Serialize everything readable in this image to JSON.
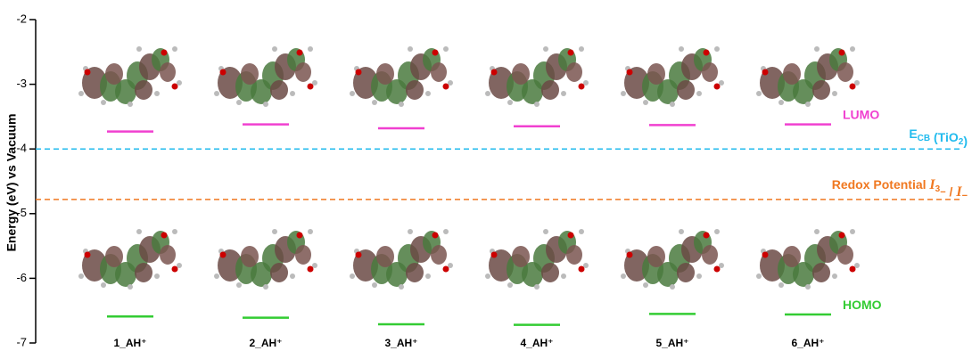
{
  "chart_data": {
    "type": "energy_levels",
    "ylabel": "Energy (eV) vs Vacuum",
    "ylim": [
      -7,
      -2
    ],
    "yticks": [
      -2,
      -3,
      -4,
      -5,
      -6,
      -7
    ],
    "categories": [
      "1_AH⁺",
      "2_AH⁺",
      "3_AH⁺",
      "4_AH⁺",
      "5_AH⁺",
      "6_AH⁺"
    ],
    "series": [
      {
        "name": "LUMO",
        "color": "#f040d0",
        "values": [
          -3.73,
          -3.62,
          -3.68,
          -3.65,
          -3.63,
          -3.62
        ]
      },
      {
        "name": "HOMO",
        "color": "#33cc33",
        "values": [
          -6.59,
          -6.61,
          -6.71,
          -6.72,
          -6.55,
          -6.56
        ]
      }
    ],
    "reference_lines": [
      {
        "label": [
          "E",
          "CB",
          " (TiO",
          "2",
          ")"
        ],
        "color": "#22bbee",
        "value": -4.0
      },
      {
        "label": [
          "Redox Potential ",
          "I",
          "3",
          "−",
          " / ",
          "I",
          "−"
        ],
        "color": "#f07820",
        "value": -4.78
      }
    ]
  }
}
